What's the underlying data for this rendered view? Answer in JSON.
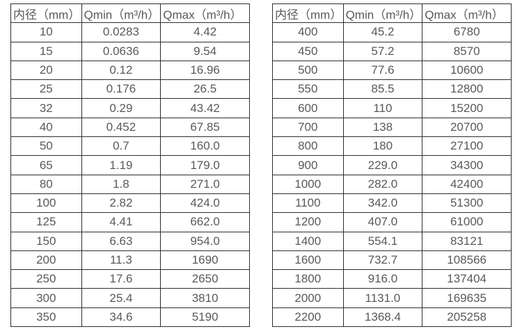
{
  "colors": {
    "background": "#ffffff",
    "table_border": "#2e2e2e",
    "text": "#58595b"
  },
  "tables": [
    {
      "name": "diameter-flow-table-small",
      "headers": [
        "内径（mm）",
        "Qmin（m³/h）",
        "Qmax（m³/h）"
      ],
      "rows": [
        [
          "10",
          "0.0283",
          "4.42"
        ],
        [
          "15",
          "0.0636",
          "9.54"
        ],
        [
          "20",
          "0.12",
          "16.96"
        ],
        [
          "25",
          "0.176",
          "26.5"
        ],
        [
          "32",
          "0.29",
          "43.42"
        ],
        [
          "40",
          "0.452",
          "67.85"
        ],
        [
          "50",
          "0.7",
          "160.0"
        ],
        [
          "65",
          "1.19",
          "179.0"
        ],
        [
          "80",
          "1.8",
          "271.0"
        ],
        [
          "100",
          "2.82",
          "424.0"
        ],
        [
          "125",
          "4.41",
          "662.0"
        ],
        [
          "150",
          "6.63",
          "954.0"
        ],
        [
          "200",
          "11.3",
          "1690"
        ],
        [
          "250",
          "17.6",
          "2650"
        ],
        [
          "300",
          "25.4",
          "3810"
        ],
        [
          "350",
          "34.6",
          "5190"
        ]
      ]
    },
    {
      "name": "diameter-flow-table-large",
      "headers": [
        "内径（mm）",
        "Qmin（m³/h）",
        "Qmax（m³/h）"
      ],
      "rows": [
        [
          "400",
          "45.2",
          "6780"
        ],
        [
          "450",
          "57.2",
          "8570"
        ],
        [
          "500",
          "77.6",
          "10600"
        ],
        [
          "550",
          "85.5",
          "12800"
        ],
        [
          "600",
          "110",
          "15200"
        ],
        [
          "700",
          "138",
          "20700"
        ],
        [
          "800",
          "180",
          "27100"
        ],
        [
          "900",
          "229.0",
          "34300"
        ],
        [
          "1000",
          "282.0",
          "42400"
        ],
        [
          "1100",
          "342.0",
          "51300"
        ],
        [
          "1200",
          "407.0",
          "61000"
        ],
        [
          "1400",
          "554.1",
          "83121"
        ],
        [
          "1600",
          "732.7",
          "108566"
        ],
        [
          "1800",
          "916.0",
          "137404"
        ],
        [
          "2000",
          "1131.0",
          "169635"
        ],
        [
          "2200",
          "1368.4",
          "205258"
        ]
      ]
    }
  ]
}
